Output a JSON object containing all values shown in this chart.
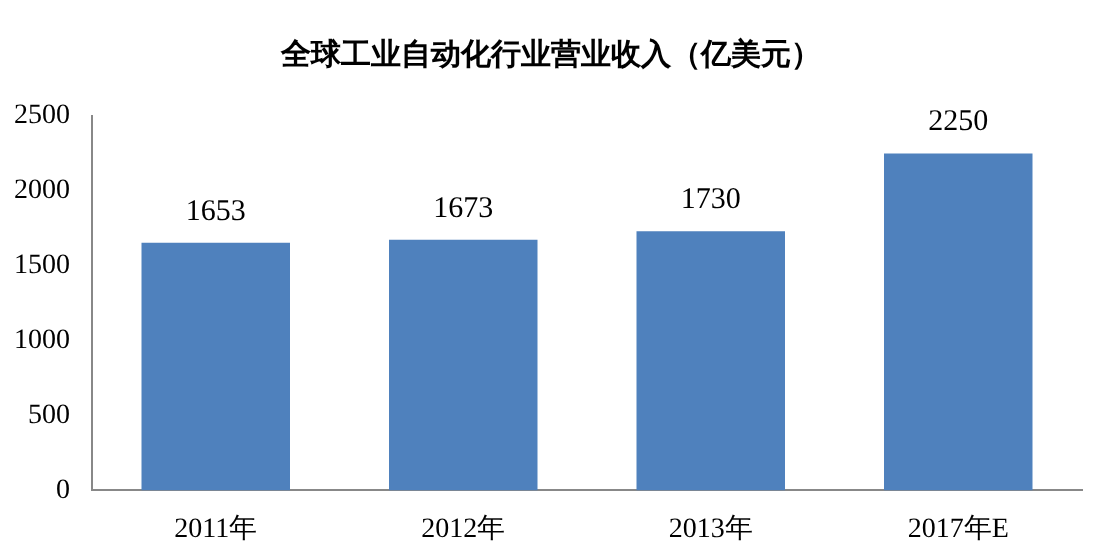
{
  "chart_data": {
    "type": "bar",
    "title": "全球工业自动化行业营业收入（亿美元）",
    "categories": [
      "2011年",
      "2012年",
      "2013年",
      "2017年E"
    ],
    "values": [
      1653,
      1673,
      1730,
      2250
    ],
    "color": "#4f81bd",
    "ylim": [
      0,
      2500
    ],
    "yticks": [
      0,
      500,
      1000,
      1500,
      2000,
      2500
    ],
    "grid": false,
    "data_labels": true
  }
}
